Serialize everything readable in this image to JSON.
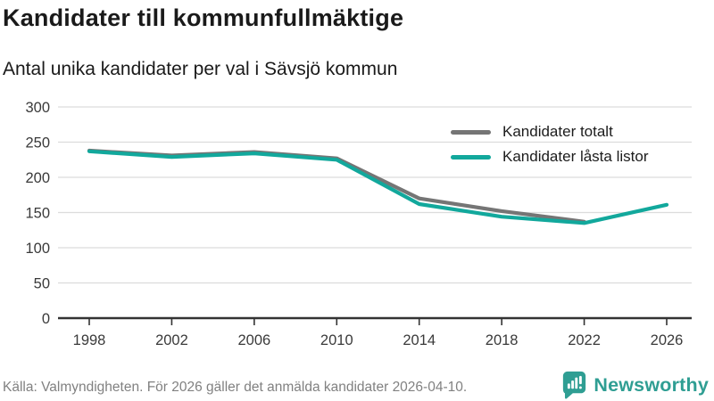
{
  "header": {
    "title": "Kandidater till kommunfullmäktige",
    "subtitle": "Antal unika kandidater per val i Sävsjö kommun"
  },
  "legend": {
    "items": [
      {
        "label": "Kandidater totalt",
        "color": "#757575"
      },
      {
        "label": "Kandidater låsta listor",
        "color": "#12a89c"
      }
    ]
  },
  "footer": {
    "source": "Källa: Valmyndigheten. För 2026 gäller det anmälda kandidater 2026-04-10.",
    "brand": "Newsworthy",
    "brand_color": "#2f9e93",
    "icon": "newsworthy-badge-icon"
  },
  "chart_data": {
    "type": "line",
    "categories": [
      "1998",
      "2002",
      "2006",
      "2010",
      "2014",
      "2018",
      "2022",
      "2026"
    ],
    "series": [
      {
        "name": "Kandidater totalt",
        "color": "#757575",
        "values": [
          238,
          231,
          236,
          227,
          170,
          152,
          137,
          null
        ]
      },
      {
        "name": "Kandidater låsta listor",
        "color": "#12a89c",
        "values": [
          237,
          229,
          234,
          225,
          162,
          144,
          135,
          161
        ]
      }
    ],
    "title": "Kandidater till kommunfullmäktige",
    "subtitle": "Antal unika kandidater per val i Sävsjö kommun",
    "xlabel": "",
    "ylabel": "",
    "ylim": [
      0,
      300
    ],
    "yticks": [
      0,
      50,
      100,
      150,
      200,
      250,
      300
    ],
    "grid": true,
    "gridline_color": "#dcdcdc",
    "axis_color": "#333333",
    "legend_position": "top-right"
  }
}
